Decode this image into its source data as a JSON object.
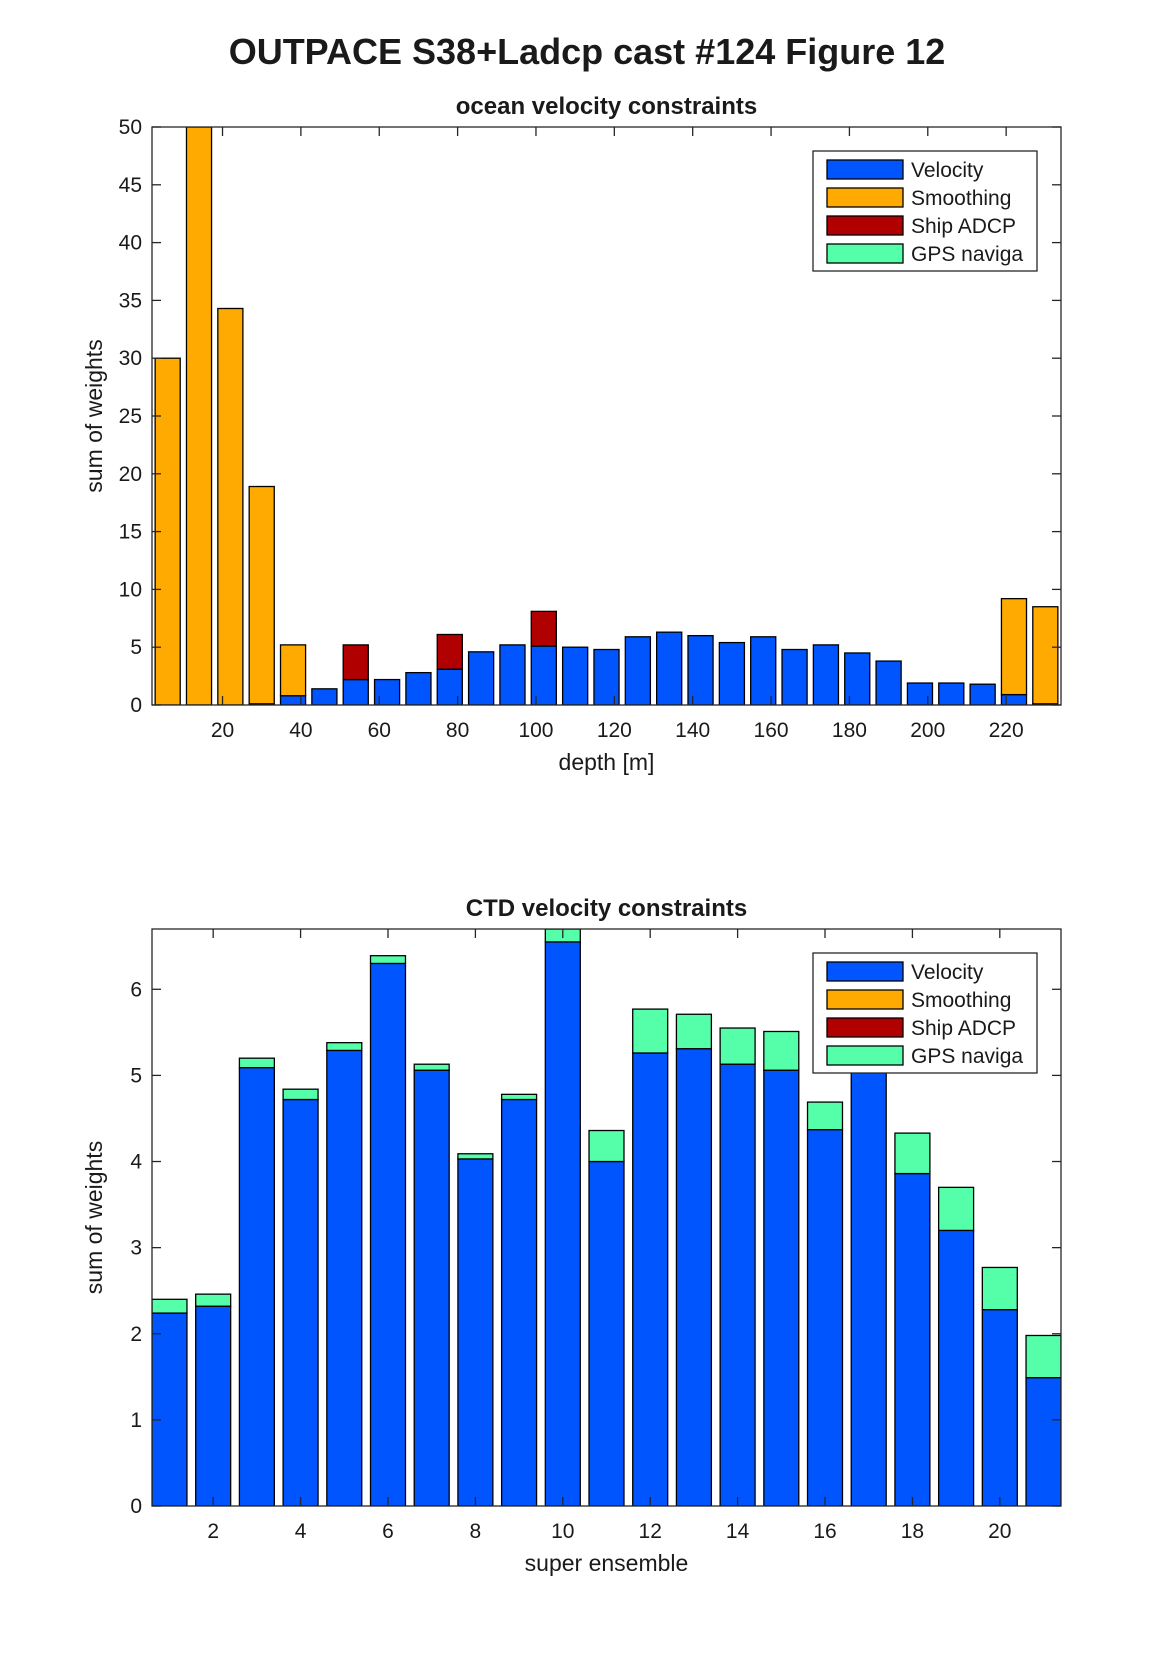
{
  "figure": {
    "title": "OUTPACE S38+Ladcp cast #124  Figure 12"
  },
  "colors": {
    "Velocity": "#0055ff",
    "Smoothing": "#ffaa00",
    "Ship ADCP": "#b00000",
    "GPS naviga": "#55ffaa"
  },
  "chart_data": [
    {
      "type": "bar",
      "stacked": true,
      "title": "ocean velocity constraints",
      "xlabel": "depth [m]",
      "ylabel": "sum of weights",
      "xlim": [
        2,
        234
      ],
      "ylim": [
        0,
        50
      ],
      "xticks": [
        20,
        40,
        60,
        80,
        100,
        120,
        140,
        160,
        180,
        200,
        220
      ],
      "yticks": [
        0,
        5,
        10,
        15,
        20,
        25,
        30,
        35,
        40,
        45,
        50
      ],
      "legend_position": "top-right",
      "bar_width": 6.4,
      "x": [
        6,
        14,
        22,
        30,
        38,
        46,
        54,
        62,
        70,
        78,
        86,
        94,
        102,
        110,
        118,
        126,
        134,
        142,
        150,
        158,
        166,
        174,
        182,
        190,
        198,
        206,
        214,
        222,
        230
      ],
      "series": [
        {
          "name": "Velocity",
          "values": [
            0,
            0,
            0,
            0.1,
            0.8,
            1.4,
            2.2,
            2.2,
            2.8,
            3.1,
            4.6,
            5.2,
            5.1,
            5.0,
            4.8,
            5.9,
            6.3,
            6.0,
            5.4,
            5.9,
            4.8,
            5.2,
            4.5,
            3.8,
            1.9,
            1.9,
            1.8,
            0.9,
            0.1
          ]
        },
        {
          "name": "Smoothing",
          "values": [
            30.0,
            50.0,
            34.3,
            18.8,
            4.4,
            0,
            0,
            0,
            0,
            0,
            0,
            0,
            0,
            0,
            0,
            0,
            0,
            0,
            0,
            0,
            0,
            0,
            0,
            0,
            0,
            0,
            0,
            8.3,
            8.4
          ]
        },
        {
          "name": "Ship ADCP",
          "values": [
            0,
            0,
            0,
            0,
            0,
            0,
            3.0,
            0,
            0,
            3.0,
            0,
            0,
            3.0,
            0,
            0,
            0,
            0,
            0,
            0,
            0,
            0,
            0,
            0,
            0,
            0,
            0,
            0,
            0,
            0
          ]
        },
        {
          "name": "GPS naviga",
          "values": [
            0,
            0,
            0,
            0,
            0,
            0,
            0,
            0,
            0,
            0,
            0,
            0,
            0,
            0,
            0,
            0,
            0,
            0,
            0,
            0,
            0,
            0,
            0,
            0,
            0,
            0,
            0,
            0,
            0
          ]
        }
      ]
    },
    {
      "type": "bar",
      "stacked": true,
      "title": "CTD velocity constraints",
      "xlabel": "super ensemble",
      "ylabel": "sum of weights",
      "xlim": [
        0.6,
        21.4
      ],
      "ylim": [
        0,
        6.7
      ],
      "xticks": [
        2,
        4,
        6,
        8,
        10,
        12,
        14,
        16,
        18,
        20
      ],
      "yticks": [
        0,
        1,
        2,
        3,
        4,
        5,
        6
      ],
      "legend_position": "top-right",
      "bar_width": 0.8,
      "x": [
        1,
        2,
        3,
        4,
        5,
        6,
        7,
        8,
        9,
        10,
        11,
        12,
        13,
        14,
        15,
        16,
        17,
        18,
        19,
        20,
        21
      ],
      "series": [
        {
          "name": "Velocity",
          "values": [
            2.24,
            2.32,
            5.09,
            4.72,
            5.29,
            6.3,
            5.06,
            4.03,
            4.72,
            6.55,
            4.0,
            5.26,
            5.31,
            5.13,
            5.06,
            4.37,
            5.2,
            3.86,
            3.2,
            2.28,
            1.49
          ]
        },
        {
          "name": "Smoothing",
          "values": [
            0,
            0,
            0,
            0,
            0,
            0,
            0,
            0,
            0,
            0,
            0,
            0,
            0,
            0,
            0,
            0,
            0,
            0,
            0,
            0,
            0
          ]
        },
        {
          "name": "Ship ADCP",
          "values": [
            0,
            0,
            0,
            0,
            0,
            0,
            0,
            0,
            0,
            0,
            0,
            0,
            0,
            0,
            0,
            0,
            0,
            0,
            0,
            0,
            0
          ]
        },
        {
          "name": "GPS naviga",
          "values": [
            0.16,
            0.14,
            0.11,
            0.12,
            0.09,
            0.09,
            0.07,
            0.06,
            0.06,
            0.15,
            0.36,
            0.51,
            0.4,
            0.42,
            0.45,
            0.32,
            0,
            0.47,
            0.5,
            0.49,
            0.49
          ]
        }
      ]
    }
  ]
}
